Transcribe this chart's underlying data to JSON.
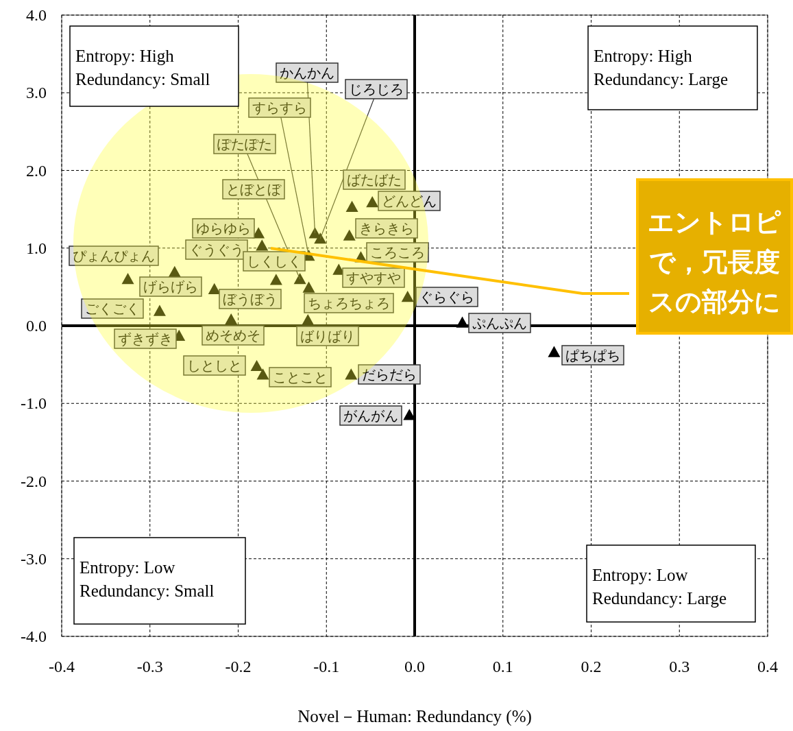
{
  "chart_data": {
    "type": "scatter",
    "xlabel": "Novel－Human: Redundancy (%)",
    "xlim": [
      -0.4,
      0.4
    ],
    "ylim": [
      -4,
      4
    ],
    "xticks": [
      {
        "value": -0.4,
        "label": "-0.4"
      },
      {
        "value": -0.3,
        "label": "-0.3"
      },
      {
        "value": -0.2,
        "label": "-0.2"
      },
      {
        "value": -0.1,
        "label": "-0.1"
      },
      {
        "value": 0,
        "label": "0.0"
      },
      {
        "value": 0.1,
        "label": "0.1"
      },
      {
        "value": 0.2,
        "label": "0.2"
      },
      {
        "value": 0.3,
        "label": "0.3"
      },
      {
        "value": 0.4,
        "label": "0.4"
      }
    ],
    "yticks": [
      {
        "value": 4,
        "label": "4.0"
      },
      {
        "value": 3,
        "label": "3.0"
      },
      {
        "value": 2,
        "label": "2.0"
      },
      {
        "value": 1,
        "label": "1.0"
      },
      {
        "value": 0,
        "label": "0.0"
      },
      {
        "value": -1,
        "label": "-1.0"
      },
      {
        "value": -2,
        "label": "-2.0"
      },
      {
        "value": -3,
        "label": "-3.0"
      },
      {
        "value": -4,
        "label": "-4.0"
      }
    ],
    "grid": true,
    "marker": "triangle",
    "series": [
      {
        "color": "#000000",
        "x": [
          -0.325,
          -0.272,
          -0.289,
          -0.267,
          -0.227,
          -0.208,
          -0.179,
          -0.172,
          -0.177,
          -0.173,
          -0.157,
          -0.13,
          -0.12,
          -0.113,
          -0.107,
          -0.12,
          -0.121,
          -0.086,
          -0.061,
          -0.074,
          -0.071,
          -0.048,
          -0.008,
          -0.072,
          -0.006,
          0.054,
          0.158
        ],
        "values": [
          0.6,
          0.69,
          0.19,
          -0.13,
          0.47,
          0.08,
          -0.52,
          -0.63,
          1.19,
          1.03,
          0.59,
          0.6,
          0.9,
          1.19,
          1.12,
          0.49,
          0.07,
          0.72,
          0.88,
          1.16,
          1.53,
          1.59,
          0.37,
          -0.63,
          -1.15,
          0.04,
          -0.34
        ]
      }
    ],
    "annotations": [
      {
        "text": "ぴょんぴょん",
        "x": -0.325,
        "y": 0.6
      },
      {
        "text": "げらげら",
        "x": -0.272,
        "y": 0.69
      },
      {
        "text": "ごくごく",
        "x": -0.289,
        "y": 0.19
      },
      {
        "text": "ずきずき",
        "x": -0.267,
        "y": -0.13
      },
      {
        "text": "ぼうぼう",
        "x": -0.227,
        "y": 0.47
      },
      {
        "text": "めそめそ",
        "x": -0.208,
        "y": 0.08
      },
      {
        "text": "しとしと",
        "x": -0.179,
        "y": -0.52
      },
      {
        "text": "ことこと",
        "x": -0.172,
        "y": -0.63
      },
      {
        "text": "ゆらゆら",
        "x": -0.177,
        "y": 1.19
      },
      {
        "text": "ぐうぐう",
        "x": -0.173,
        "y": 1.03
      },
      {
        "text": "しくしく",
        "x": -0.157,
        "y": 0.59
      },
      "とぼとぼ",
      {
        "text": "ぽたぽた",
        "x": -0.13,
        "y": 0.6
      },
      {
        "text": "すらすら",
        "x": -0.12,
        "y": 0.9
      },
      {
        "text": "かんかん",
        "x": -0.113,
        "y": 1.19
      },
      {
        "text": "じろじろ",
        "x": -0.107,
        "y": 1.12
      },
      {
        "text": "ちょろちょろ",
        "x": -0.12,
        "y": 0.49
      },
      {
        "text": "ばりばり",
        "x": -0.121,
        "y": 0.07
      },
      {
        "text": "すやすや",
        "x": -0.086,
        "y": 0.72
      },
      {
        "text": "ころころ",
        "x": -0.061,
        "y": 0.88
      },
      {
        "text": "きらきら",
        "x": -0.074,
        "y": 1.16
      },
      {
        "text": "ばたばた",
        "x": -0.071,
        "y": 1.53
      },
      {
        "text": "どんどん",
        "x": -0.048,
        "y": 1.59
      },
      {
        "text": "ぐらぐら",
        "x": -0.008,
        "y": 0.37
      },
      {
        "text": "だらだら",
        "x": -0.072,
        "y": -0.63
      },
      {
        "text": "がんがん",
        "x": -0.006,
        "y": -1.15
      },
      {
        "text": "ぷんぷん",
        "x": 0.054,
        "y": 0.04
      },
      {
        "text": "ぱちぱち",
        "x": 0.158,
        "y": -0.34
      },
      "Entropy: High\nRedundancy: Small",
      "Entropy: High\nRedundancy: Large",
      "Entropy: Low\nRedundancy: Small",
      "Entropy: Low\nRedundancy: Large",
      "エントロピで，冗長度スの部分に"
    ]
  }
}
